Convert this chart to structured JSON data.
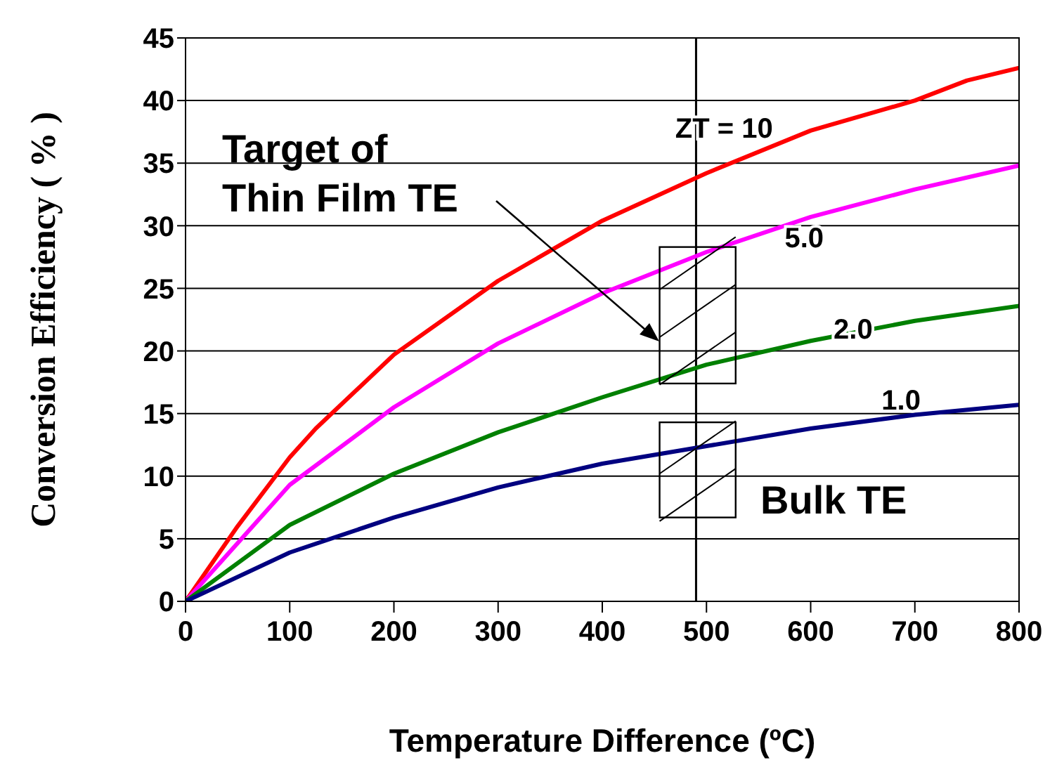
{
  "chart_data": {
    "type": "line",
    "xlabel": "Temperature Difference (ºC)",
    "ylabel": "Conversion Efficiency ( % )",
    "xlim": [
      0,
      800
    ],
    "xticks": [
      0,
      100,
      200,
      300,
      400,
      500,
      600,
      700,
      800
    ],
    "ylim": [
      0,
      45
    ],
    "yticks": [
      0,
      5,
      10,
      15,
      20,
      25,
      30,
      35,
      40,
      45
    ],
    "grid": "y",
    "legend": false,
    "marker": "none",
    "line_style": "solid",
    "series": [
      {
        "name": "ZT = 10",
        "color": "#ff0000",
        "x": [
          0,
          50,
          100,
          125,
          200,
          300,
          400,
          500,
          600,
          700,
          750,
          800
        ],
        "values": [
          0,
          6,
          11.5,
          13.8,
          19.7,
          25.6,
          30.4,
          34.2,
          37.6,
          40,
          41.6,
          42.6
        ]
      },
      {
        "name": "5.0",
        "color": "#ff00ff",
        "x": [
          0,
          100,
          200,
          300,
          400,
          500,
          600,
          700,
          800
        ],
        "values": [
          0,
          9.3,
          15.5,
          20.6,
          24.6,
          27.9,
          30.7,
          32.9,
          34.8
        ]
      },
      {
        "name": "2.0",
        "color": "#008000",
        "x": [
          0,
          100,
          200,
          300,
          400,
          500,
          600,
          700,
          800
        ],
        "values": [
          0,
          6.1,
          10.2,
          13.5,
          16.3,
          18.9,
          20.8,
          22.4,
          23.6
        ]
      },
      {
        "name": "1.0",
        "color": "#000080",
        "x": [
          0,
          100,
          200,
          300,
          400,
          500,
          600,
          700,
          800
        ],
        "values": [
          0,
          3.9,
          6.7,
          9.1,
          11,
          12.4,
          13.8,
          14.9,
          15.7
        ]
      }
    ],
    "ref_lines": [
      {
        "axis": "x",
        "value": 490,
        "color": "#000000"
      }
    ],
    "annotations": [
      "Target of",
      "Thin Film TE",
      "Bulk TE"
    ]
  }
}
